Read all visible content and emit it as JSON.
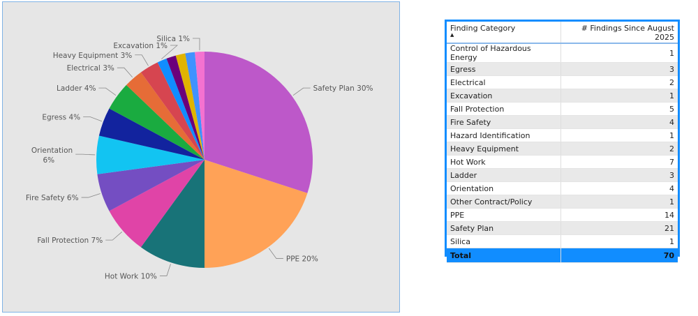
{
  "chart_data": {
    "type": "pie",
    "slices": [
      {
        "label": "Safety Plan",
        "value": 21,
        "pct_label": "30%",
        "color": "#BD58C9"
      },
      {
        "label": "PPE",
        "value": 14,
        "pct_label": "20%",
        "color": "#FFA257"
      },
      {
        "label": "Hot Work",
        "value": 7,
        "pct_label": "10%",
        "color": "#187378"
      },
      {
        "label": "Fall Protection",
        "value": 5,
        "pct_label": "7%",
        "color": "#E044A7"
      },
      {
        "label": "Fire Safety",
        "value": 4,
        "pct_label": "6%",
        "color": "#744EC2"
      },
      {
        "label": "Orientation",
        "value": 4,
        "pct_label": "6%",
        "color": "#12C4F2"
      },
      {
        "label": "Egress",
        "value": 3,
        "pct_label": "4%",
        "color": "#12239E"
      },
      {
        "label": "Ladder",
        "value": 3,
        "pct_label": "4%",
        "color": "#1AAB40"
      },
      {
        "label": "Electrical",
        "value": 2,
        "pct_label": "3%",
        "color": "#E66C37"
      },
      {
        "label": "Heavy Equipment",
        "value": 2,
        "pct_label": "3%",
        "color": "#D64550"
      },
      {
        "label": "Excavation",
        "value": 1,
        "pct_label": "1%",
        "color": "#118DFF"
      },
      {
        "label": "Control of Hazardous Energy",
        "value": 1,
        "pct_label": "",
        "color": "#6B007B"
      },
      {
        "label": "Hazard Identification",
        "value": 1,
        "pct_label": "",
        "color": "#E0B400"
      },
      {
        "label": "Other Contract/Policy",
        "value": 1,
        "pct_label": "",
        "color": "#4092FF"
      },
      {
        "label": "Silica",
        "value": 1,
        "pct_label": "1%",
        "color": "#F472D0"
      }
    ]
  },
  "table": {
    "headers": [
      "Finding Category",
      "# Findings Since August 2025"
    ],
    "sort_indicator": "▲",
    "rows": [
      [
        "Control of Hazardous Energy",
        "1"
      ],
      [
        "Egress",
        "3"
      ],
      [
        "Electrical",
        "2"
      ],
      [
        "Excavation",
        "1"
      ],
      [
        "Fall Protection",
        "5"
      ],
      [
        "Fire Safety",
        "4"
      ],
      [
        "Hazard Identification",
        "1"
      ],
      [
        "Heavy Equipment",
        "2"
      ],
      [
        "Hot Work",
        "7"
      ],
      [
        "Ladder",
        "3"
      ],
      [
        "Orientation",
        "4"
      ],
      [
        "Other Contract/Policy",
        "1"
      ],
      [
        "PPE",
        "14"
      ],
      [
        "Safety Plan",
        "21"
      ],
      [
        "Silica",
        "1"
      ]
    ],
    "total": [
      "Total",
      "70"
    ]
  }
}
